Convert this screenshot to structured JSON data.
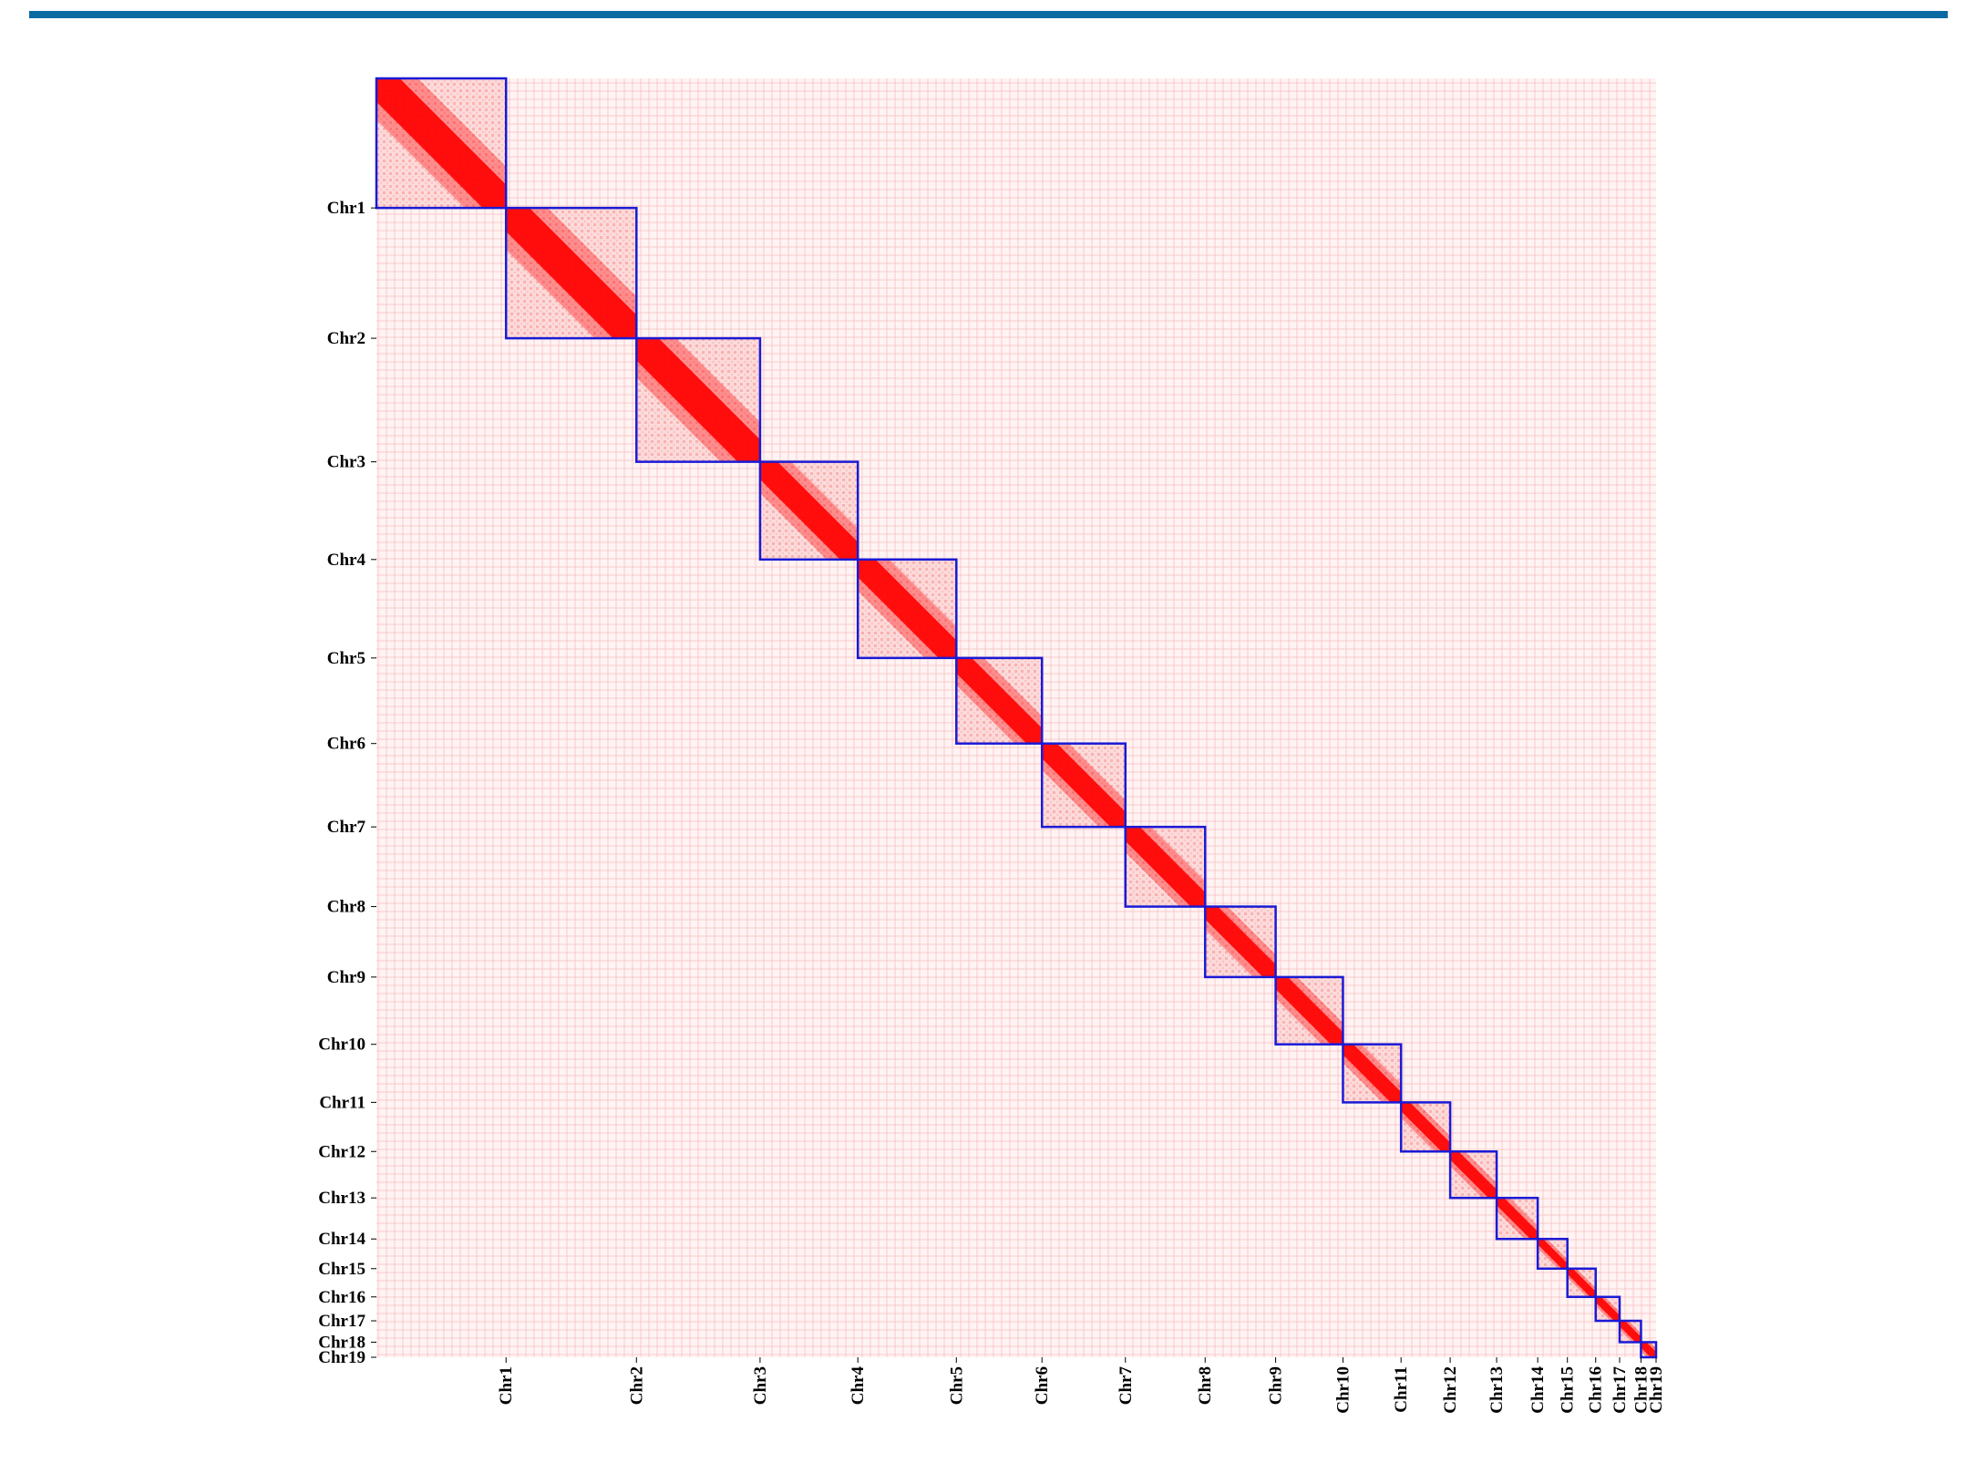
{
  "colors": {
    "header_bar": "#0a6aa1",
    "heatmap_low": "#fff3f3",
    "heatmap_high": "#ff0000",
    "box": "#1a1ad6"
  },
  "chart_data": {
    "type": "heatmap",
    "title": "",
    "xlabel": "",
    "ylabel": "",
    "chromosomes": [
      {
        "name": "Chr1",
        "end": 0.1013
      },
      {
        "name": "Chr2",
        "end": 0.2032
      },
      {
        "name": "Chr3",
        "end": 0.2998
      },
      {
        "name": "Chr4",
        "end": 0.3762
      },
      {
        "name": "Chr5",
        "end": 0.4532
      },
      {
        "name": "Chr6",
        "end": 0.5201
      },
      {
        "name": "Chr7",
        "end": 0.5853
      },
      {
        "name": "Chr8",
        "end": 0.6476
      },
      {
        "name": "Chr9",
        "end": 0.7027
      },
      {
        "name": "Chr10",
        "end": 0.7553
      },
      {
        "name": "Chr11",
        "end": 0.8007
      },
      {
        "name": "Chr12",
        "end": 0.8391
      },
      {
        "name": "Chr13",
        "end": 0.8754
      },
      {
        "name": "Chr14",
        "end": 0.9075
      },
      {
        "name": "Chr15",
        "end": 0.9307
      },
      {
        "name": "Chr16",
        "end": 0.9528
      },
      {
        "name": "Chr17",
        "end": 0.9715
      },
      {
        "name": "Chr18",
        "end": 0.9882
      },
      {
        "name": "Chr19",
        "end": 1.0
      }
    ],
    "diagonal_blocks_outlined": true
  }
}
